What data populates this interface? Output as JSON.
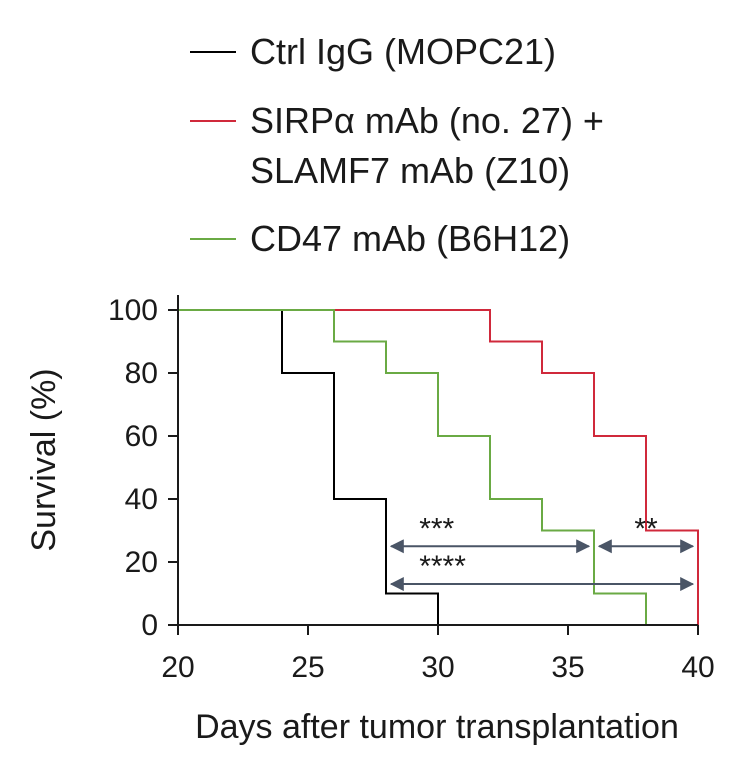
{
  "chart_data": {
    "type": "line",
    "style": "step",
    "xlabel": "Days after tumor transplantation",
    "ylabel": "Survival (%)",
    "xlim": [
      20,
      40
    ],
    "ylim": [
      0,
      100
    ],
    "xticks": [
      20,
      25,
      30,
      35,
      40
    ],
    "yticks": [
      0,
      20,
      40,
      60,
      80,
      100
    ],
    "grid": false,
    "legend_position": "top",
    "series": [
      {
        "name": "Ctrl IgG (MOPC21)",
        "color": "#000000",
        "x": [
          20,
          24,
          26,
          28,
          30
        ],
        "y": [
          100,
          80,
          40,
          10,
          0
        ]
      },
      {
        "name": "SIRPα mAb (no. 27) +\nSLAMF7 mAb (Z10)",
        "color": "#d0293b",
        "x": [
          20,
          32,
          34,
          36,
          38,
          40
        ],
        "y": [
          100,
          90,
          80,
          60,
          30,
          0
        ]
      },
      {
        "name": "CD47 mAb (B6H12)",
        "color": "#6aaa44",
        "x": [
          20,
          26,
          28,
          30,
          32,
          34,
          36,
          38
        ],
        "y": [
          100,
          90,
          80,
          60,
          40,
          30,
          10,
          0
        ]
      }
    ],
    "annotations": [
      {
        "label": "***",
        "x_start": 28.2,
        "x_end": 35.8,
        "y": 25,
        "color": "#4a5566"
      },
      {
        "label": "**",
        "x_start": 36.2,
        "x_end": 39.8,
        "y": 25,
        "color": "#4a5566"
      },
      {
        "label": "****",
        "x_start": 28.2,
        "x_end": 39.8,
        "y": 13,
        "color": "#4a5566"
      }
    ]
  }
}
